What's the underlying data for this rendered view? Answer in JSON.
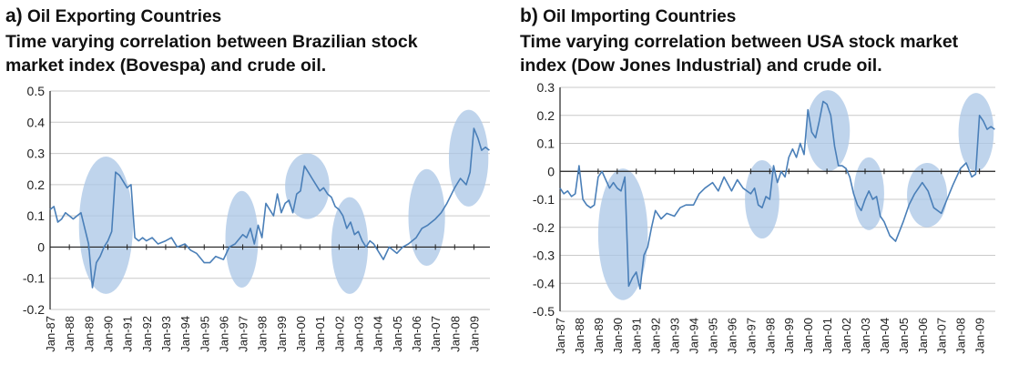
{
  "chart_data": [
    {
      "type": "line",
      "panel_label": "a)",
      "title": "Oil Exporting Countries",
      "subtitle_line1": "Time varying correlation between Brazilian stock",
      "subtitle_line2": "market index (Bovespa) and crude oil.",
      "xlabel": "",
      "ylabel": "",
      "xlim": [
        1987.0,
        2009.83
      ],
      "ylim": [
        -0.2,
        0.5
      ],
      "yticks": [
        -0.2,
        -0.1,
        0,
        0.1,
        0.2,
        0.3,
        0.4,
        0.5
      ],
      "ytick_labels": [
        "-0.2",
        "-0.1",
        "0",
        "0.1",
        "0.2",
        "0.3",
        "0.4",
        "0.5"
      ],
      "xtick_labels": [
        "Jan-87",
        "Jan-88",
        "Jan-89",
        "Jan-90",
        "Jan-91",
        "Jan-92",
        "Jan-93",
        "Jan-94",
        "Jan-95",
        "Jan-96",
        "Jan-97",
        "Jan-98",
        "Jan-99",
        "Jan-00",
        "Jan-01",
        "Jan-02",
        "Jan-03",
        "Jan-04",
        "Jan-05",
        "Jan-06",
        "Jan-07",
        "Jan-08",
        "Jan-09"
      ],
      "grid": "horizontal",
      "line_color": "#4a7fb8",
      "highlight_color": "#aac6e6",
      "highlights": [
        {
          "x": [
            1988.5,
            1991.3
          ],
          "y": [
            -0.15,
            0.29
          ]
        },
        {
          "x": [
            1996.1,
            1997.8
          ],
          "y": [
            -0.13,
            0.18
          ]
        },
        {
          "x": [
            1999.2,
            2001.5
          ],
          "y": [
            0.09,
            0.3
          ]
        },
        {
          "x": [
            2001.6,
            2003.5
          ],
          "y": [
            -0.15,
            0.16
          ]
        },
        {
          "x": [
            2005.6,
            2007.5
          ],
          "y": [
            -0.06,
            0.25
          ]
        },
        {
          "x": [
            2007.7,
            2009.75
          ],
          "y": [
            0.13,
            0.44
          ]
        }
      ],
      "series": [
        {
          "x": [
            1987.0,
            1987.2,
            1987.4,
            1987.6,
            1987.8,
            1988.0,
            1988.2,
            1988.4,
            1988.6,
            1988.8,
            1989.0,
            1989.2,
            1989.4,
            1989.6,
            1989.8,
            1990.0,
            1990.2,
            1990.4,
            1990.6,
            1990.8,
            1991.0,
            1991.2,
            1991.4,
            1991.6,
            1991.8,
            1992.0,
            1992.3,
            1992.6,
            1993.0,
            1993.3,
            1993.6,
            1994.0,
            1994.3,
            1994.6,
            1995.0,
            1995.3,
            1995.6,
            1996.0,
            1996.3,
            1996.6,
            1997.0,
            1997.2,
            1997.4,
            1997.6,
            1997.8,
            1998.0,
            1998.2,
            1998.4,
            1998.6,
            1998.8,
            1999.0,
            1999.2,
            1999.4,
            1999.6,
            1999.8,
            2000.0,
            2000.2,
            2000.4,
            2000.6,
            2000.8,
            2001.0,
            2001.2,
            2001.4,
            2001.6,
            2001.8,
            2002.0,
            2002.2,
            2002.4,
            2002.6,
            2002.8,
            2003.0,
            2003.2,
            2003.4,
            2003.6,
            2003.8,
            2004.0,
            2004.3,
            2004.6,
            2005.0,
            2005.3,
            2005.6,
            2006.0,
            2006.3,
            2006.6,
            2007.0,
            2007.3,
            2007.6,
            2008.0,
            2008.3,
            2008.6,
            2008.8,
            2009.0,
            2009.2,
            2009.4,
            2009.6,
            2009.8
          ],
          "y": [
            0.12,
            0.13,
            0.08,
            0.09,
            0.11,
            0.1,
            0.09,
            0.1,
            0.11,
            0.06,
            0.01,
            -0.13,
            -0.05,
            -0.03,
            0.0,
            0.02,
            0.05,
            0.24,
            0.23,
            0.21,
            0.19,
            0.2,
            0.03,
            0.02,
            0.03,
            0.02,
            0.03,
            0.01,
            0.02,
            0.03,
            0.0,
            0.01,
            -0.01,
            -0.02,
            -0.05,
            -0.05,
            -0.03,
            -0.04,
            0.0,
            0.01,
            0.04,
            0.03,
            0.06,
            0.01,
            0.07,
            0.03,
            0.14,
            0.12,
            0.1,
            0.17,
            0.11,
            0.14,
            0.15,
            0.11,
            0.17,
            0.18,
            0.26,
            0.24,
            0.22,
            0.2,
            0.18,
            0.19,
            0.17,
            0.16,
            0.13,
            0.12,
            0.1,
            0.06,
            0.08,
            0.04,
            0.05,
            0.02,
            0.0,
            0.02,
            0.01,
            -0.01,
            -0.04,
            0.0,
            -0.02,
            0.0,
            0.01,
            0.03,
            0.06,
            0.07,
            0.09,
            0.11,
            0.14,
            0.19,
            0.22,
            0.2,
            0.24,
            0.38,
            0.35,
            0.31,
            0.32,
            0.31
          ]
        }
      ]
    },
    {
      "type": "line",
      "panel_label": "b)",
      "title": "Oil Importing Countries",
      "subtitle_line1": "Time varying correlation between USA stock market",
      "subtitle_line2": "index (Dow Jones Industrial) and crude oil.",
      "xlabel": "",
      "ylabel": "",
      "xlim": [
        1987.0,
        2009.83
      ],
      "ylim": [
        -0.5,
        0.3
      ],
      "yticks": [
        -0.5,
        -0.4,
        -0.3,
        -0.2,
        -0.1,
        0,
        0.1,
        0.2,
        0.3
      ],
      "ytick_labels": [
        "-0.5",
        "-0.4",
        "-0.3",
        "-0.2",
        "-0.1",
        "0",
        "0.1",
        "0.2",
        "0.3"
      ],
      "xtick_labels": [
        "Jan-87",
        "Jan-88",
        "Jan-89",
        "Jan-90",
        "Jan-91",
        "Jan-92",
        "Jan-93",
        "Jan-94",
        "Jan-95",
        "Jan-96",
        "Jan-97",
        "Jan-98",
        "Jan-99",
        "Jan-00",
        "Jan-01",
        "Jan-02",
        "Jan-03",
        "Jan-04",
        "Jan-05",
        "Jan-06",
        "Jan-07",
        "Jan-08",
        "Jan-09"
      ],
      "grid": "horizontal",
      "line_color": "#4a7fb8",
      "highlight_color": "#aac6e6",
      "highlights": [
        {
          "x": [
            1989.0,
            1991.6
          ],
          "y": [
            -0.46,
            0.01
          ]
        },
        {
          "x": [
            1996.7,
            1998.5
          ],
          "y": [
            -0.24,
            0.04
          ]
        },
        {
          "x": [
            1999.9,
            2002.2
          ],
          "y": [
            0.0,
            0.29
          ]
        },
        {
          "x": [
            2002.4,
            2004.0
          ],
          "y": [
            -0.21,
            0.05
          ]
        },
        {
          "x": [
            2005.2,
            2007.3
          ],
          "y": [
            -0.2,
            0.03
          ]
        },
        {
          "x": [
            2007.9,
            2009.75
          ],
          "y": [
            0.0,
            0.28
          ]
        }
      ],
      "series": [
        {
          "x": [
            1987.0,
            1987.2,
            1987.4,
            1987.6,
            1987.8,
            1988.0,
            1988.2,
            1988.4,
            1988.6,
            1988.8,
            1989.0,
            1989.2,
            1989.4,
            1989.6,
            1989.8,
            1990.0,
            1990.2,
            1990.4,
            1990.6,
            1990.8,
            1991.0,
            1991.2,
            1991.4,
            1991.6,
            1991.8,
            1992.0,
            1992.3,
            1992.6,
            1993.0,
            1993.3,
            1993.6,
            1994.0,
            1994.3,
            1994.6,
            1995.0,
            1995.3,
            1995.6,
            1996.0,
            1996.3,
            1996.6,
            1997.0,
            1997.2,
            1997.4,
            1997.6,
            1997.8,
            1998.0,
            1998.2,
            1998.4,
            1998.6,
            1998.8,
            1999.0,
            1999.2,
            1999.4,
            1999.6,
            1999.8,
            2000.0,
            2000.2,
            2000.4,
            2000.6,
            2000.8,
            2001.0,
            2001.2,
            2001.4,
            2001.6,
            2001.8,
            2002.0,
            2002.2,
            2002.4,
            2002.6,
            2002.8,
            2003.0,
            2003.2,
            2003.4,
            2003.6,
            2003.8,
            2004.0,
            2004.3,
            2004.6,
            2005.0,
            2005.3,
            2005.6,
            2006.0,
            2006.3,
            2006.6,
            2007.0,
            2007.3,
            2007.6,
            2008.0,
            2008.3,
            2008.6,
            2008.8,
            2009.0,
            2009.2,
            2009.4,
            2009.6,
            2009.8
          ],
          "y": [
            -0.06,
            -0.08,
            -0.07,
            -0.09,
            -0.08,
            0.02,
            -0.1,
            -0.12,
            -0.13,
            -0.12,
            -0.02,
            0.0,
            -0.03,
            -0.06,
            -0.04,
            -0.06,
            -0.07,
            -0.02,
            -0.41,
            -0.38,
            -0.36,
            -0.42,
            -0.3,
            -0.27,
            -0.2,
            -0.14,
            -0.17,
            -0.15,
            -0.16,
            -0.13,
            -0.12,
            -0.12,
            -0.08,
            -0.06,
            -0.04,
            -0.07,
            -0.02,
            -0.07,
            -0.03,
            -0.06,
            -0.08,
            -0.06,
            -0.12,
            -0.13,
            -0.09,
            -0.1,
            0.02,
            -0.04,
            0.0,
            -0.02,
            0.05,
            0.08,
            0.05,
            0.1,
            0.06,
            0.22,
            0.14,
            0.12,
            0.18,
            0.25,
            0.24,
            0.2,
            0.09,
            0.02,
            0.02,
            0.01,
            -0.02,
            -0.08,
            -0.12,
            -0.14,
            -0.1,
            -0.07,
            -0.1,
            -0.09,
            -0.16,
            -0.18,
            -0.23,
            -0.25,
            -0.18,
            -0.12,
            -0.08,
            -0.04,
            -0.07,
            -0.13,
            -0.15,
            -0.1,
            -0.05,
            0.01,
            0.03,
            -0.02,
            -0.01,
            0.2,
            0.18,
            0.15,
            0.16,
            0.15
          ]
        }
      ]
    }
  ]
}
